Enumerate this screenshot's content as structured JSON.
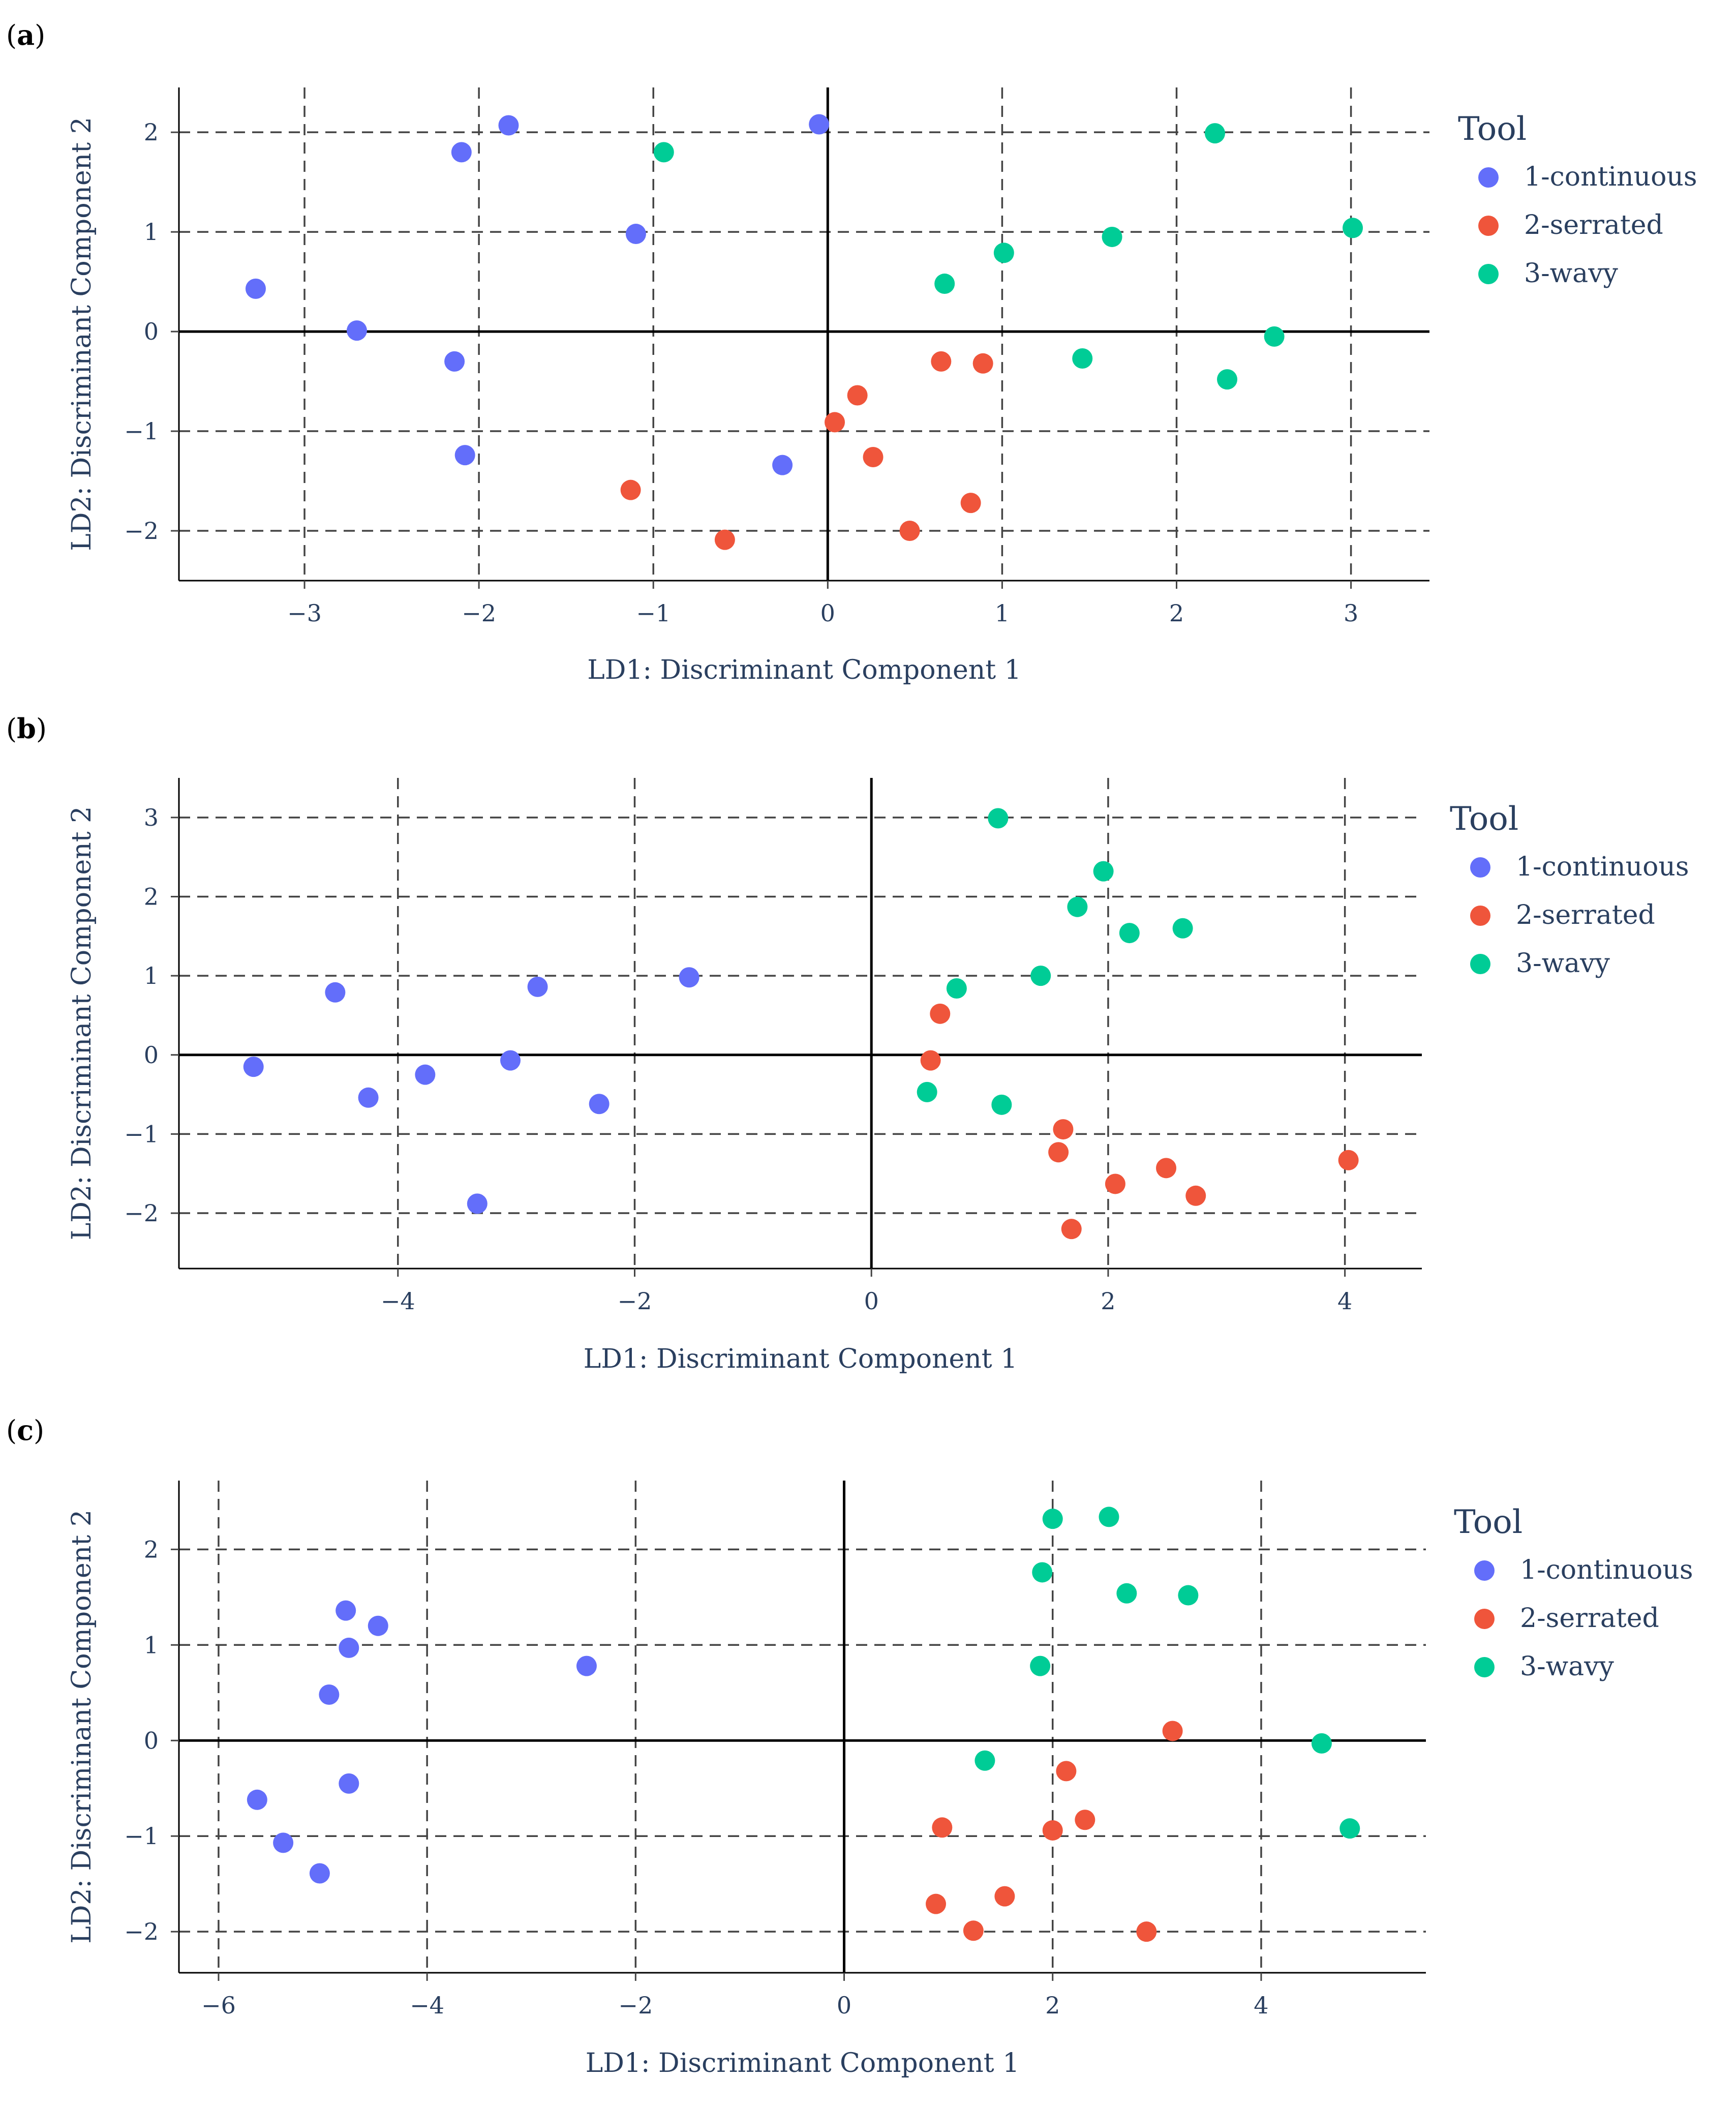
{
  "legend": {
    "title": "Tool",
    "items": [
      {
        "label": "1-continuous",
        "color": "#636efa"
      },
      {
        "label": "2-serrated",
        "color": "#ef553b"
      },
      {
        "label": "3-wavy",
        "color": "#00cc96"
      }
    ]
  },
  "chart_data": [
    {
      "panel_label": "a",
      "type": "scatter",
      "xlabel": "LD1: Discriminant Component 1",
      "ylabel": "LD2: Discriminant Component 2",
      "xlim": [
        -3.72,
        3.45
      ],
      "ylim": [
        -2.5,
        2.45
      ],
      "xticks": [
        -3,
        -2,
        -1,
        0,
        1,
        2,
        3
      ],
      "yticks": [
        -2,
        -1,
        0,
        1,
        2
      ],
      "grid": true,
      "legend_position": "right",
      "series": [
        {
          "name": "1-continuous",
          "color": "#636efa",
          "points": [
            [
              -3.28,
              0.43
            ],
            [
              -2.7,
              0.01
            ],
            [
              -2.1,
              1.8
            ],
            [
              -1.83,
              2.07
            ],
            [
              -2.14,
              -0.3
            ],
            [
              -2.08,
              -1.24
            ],
            [
              -1.1,
              0.98
            ],
            [
              -0.26,
              -1.34
            ],
            [
              -0.05,
              2.08
            ]
          ]
        },
        {
          "name": "2-serrated",
          "color": "#ef553b",
          "points": [
            [
              -1.13,
              -1.59
            ],
            [
              -0.59,
              -2.09
            ],
            [
              0.04,
              -0.91
            ],
            [
              0.17,
              -0.64
            ],
            [
              0.26,
              -1.26
            ],
            [
              0.47,
              -2.0
            ],
            [
              0.65,
              -0.3
            ],
            [
              0.82,
              -1.72
            ],
            [
              0.89,
              -0.32
            ]
          ]
        },
        {
          "name": "3-wavy",
          "color": "#00cc96",
          "points": [
            [
              -0.94,
              1.8
            ],
            [
              0.67,
              0.48
            ],
            [
              1.01,
              0.79
            ],
            [
              1.46,
              -0.27
            ],
            [
              1.63,
              0.95
            ],
            [
              2.22,
              1.99
            ],
            [
              2.29,
              -0.48
            ],
            [
              2.56,
              -0.05
            ],
            [
              3.01,
              1.04
            ]
          ]
        }
      ]
    },
    {
      "panel_label": "b",
      "type": "scatter",
      "xlabel": "LD1: Discriminant Component 1",
      "ylabel": "LD2: Discriminant Component 2",
      "xlim": [
        -5.85,
        4.65
      ],
      "ylim": [
        -2.7,
        3.5
      ],
      "xticks": [
        -4,
        -2,
        0,
        2,
        4
      ],
      "yticks": [
        -2,
        -1,
        0,
        1,
        2,
        3
      ],
      "grid": true,
      "legend_position": "right",
      "series": [
        {
          "name": "1-continuous",
          "color": "#636efa",
          "points": [
            [
              -5.22,
              -0.15
            ],
            [
              -4.53,
              0.79
            ],
            [
              -4.25,
              -0.54
            ],
            [
              -3.77,
              -0.25
            ],
            [
              -3.33,
              -1.88
            ],
            [
              -3.05,
              -0.07
            ],
            [
              -2.82,
              0.86
            ],
            [
              -2.3,
              -0.62
            ],
            [
              -1.54,
              0.98
            ]
          ]
        },
        {
          "name": "2-serrated",
          "color": "#ef553b",
          "points": [
            [
              0.5,
              -0.07
            ],
            [
              0.58,
              0.52
            ],
            [
              1.58,
              -1.23
            ],
            [
              1.62,
              -0.94
            ],
            [
              1.69,
              -2.2
            ],
            [
              2.06,
              -1.63
            ],
            [
              2.49,
              -1.43
            ],
            [
              2.74,
              -1.78
            ],
            [
              4.03,
              -1.33
            ]
          ]
        },
        {
          "name": "3-wavy",
          "color": "#00cc96",
          "points": [
            [
              0.47,
              -0.47
            ],
            [
              0.72,
              0.84
            ],
            [
              1.07,
              2.99
            ],
            [
              1.1,
              -0.63
            ],
            [
              1.43,
              1.0
            ],
            [
              1.74,
              1.87
            ],
            [
              1.96,
              2.32
            ],
            [
              2.18,
              1.54
            ],
            [
              2.63,
              1.6
            ]
          ]
        }
      ]
    },
    {
      "panel_label": "c",
      "type": "scatter",
      "xlabel": "LD1: Discriminant Component 1",
      "ylabel": "LD2: Discriminant Component 2",
      "xlim": [
        -6.38,
        5.58
      ],
      "ylim": [
        -2.43,
        2.72
      ],
      "xticks": [
        -6,
        -4,
        -2,
        0,
        2,
        4
      ],
      "yticks": [
        -2,
        -1,
        0,
        1,
        2
      ],
      "grid": true,
      "legend_position": "right",
      "series": [
        {
          "name": "1-continuous",
          "color": "#636efa",
          "points": [
            [
              -5.63,
              -0.62
            ],
            [
              -5.38,
              -1.07
            ],
            [
              -5.03,
              -1.39
            ],
            [
              -4.94,
              0.48
            ],
            [
              -4.78,
              1.36
            ],
            [
              -4.75,
              0.97
            ],
            [
              -4.75,
              -0.45
            ],
            [
              -4.47,
              1.2
            ],
            [
              -2.47,
              0.78
            ]
          ]
        },
        {
          "name": "2-serrated",
          "color": "#ef553b",
          "points": [
            [
              0.88,
              -1.71
            ],
            [
              0.94,
              -0.91
            ],
            [
              1.24,
              -1.99
            ],
            [
              1.54,
              -1.63
            ],
            [
              2.0,
              -0.94
            ],
            [
              2.13,
              -0.32
            ],
            [
              2.31,
              -0.83
            ],
            [
              2.9,
              -2.0
            ],
            [
              3.15,
              0.1
            ]
          ]
        },
        {
          "name": "3-wavy",
          "color": "#00cc96",
          "points": [
            [
              1.35,
              -0.21
            ],
            [
              1.88,
              0.78
            ],
            [
              1.9,
              1.76
            ],
            [
              2.0,
              2.32
            ],
            [
              2.54,
              2.34
            ],
            [
              2.71,
              1.54
            ],
            [
              3.3,
              1.52
            ],
            [
              4.58,
              -0.03
            ],
            [
              4.85,
              -0.92
            ]
          ]
        }
      ]
    }
  ]
}
